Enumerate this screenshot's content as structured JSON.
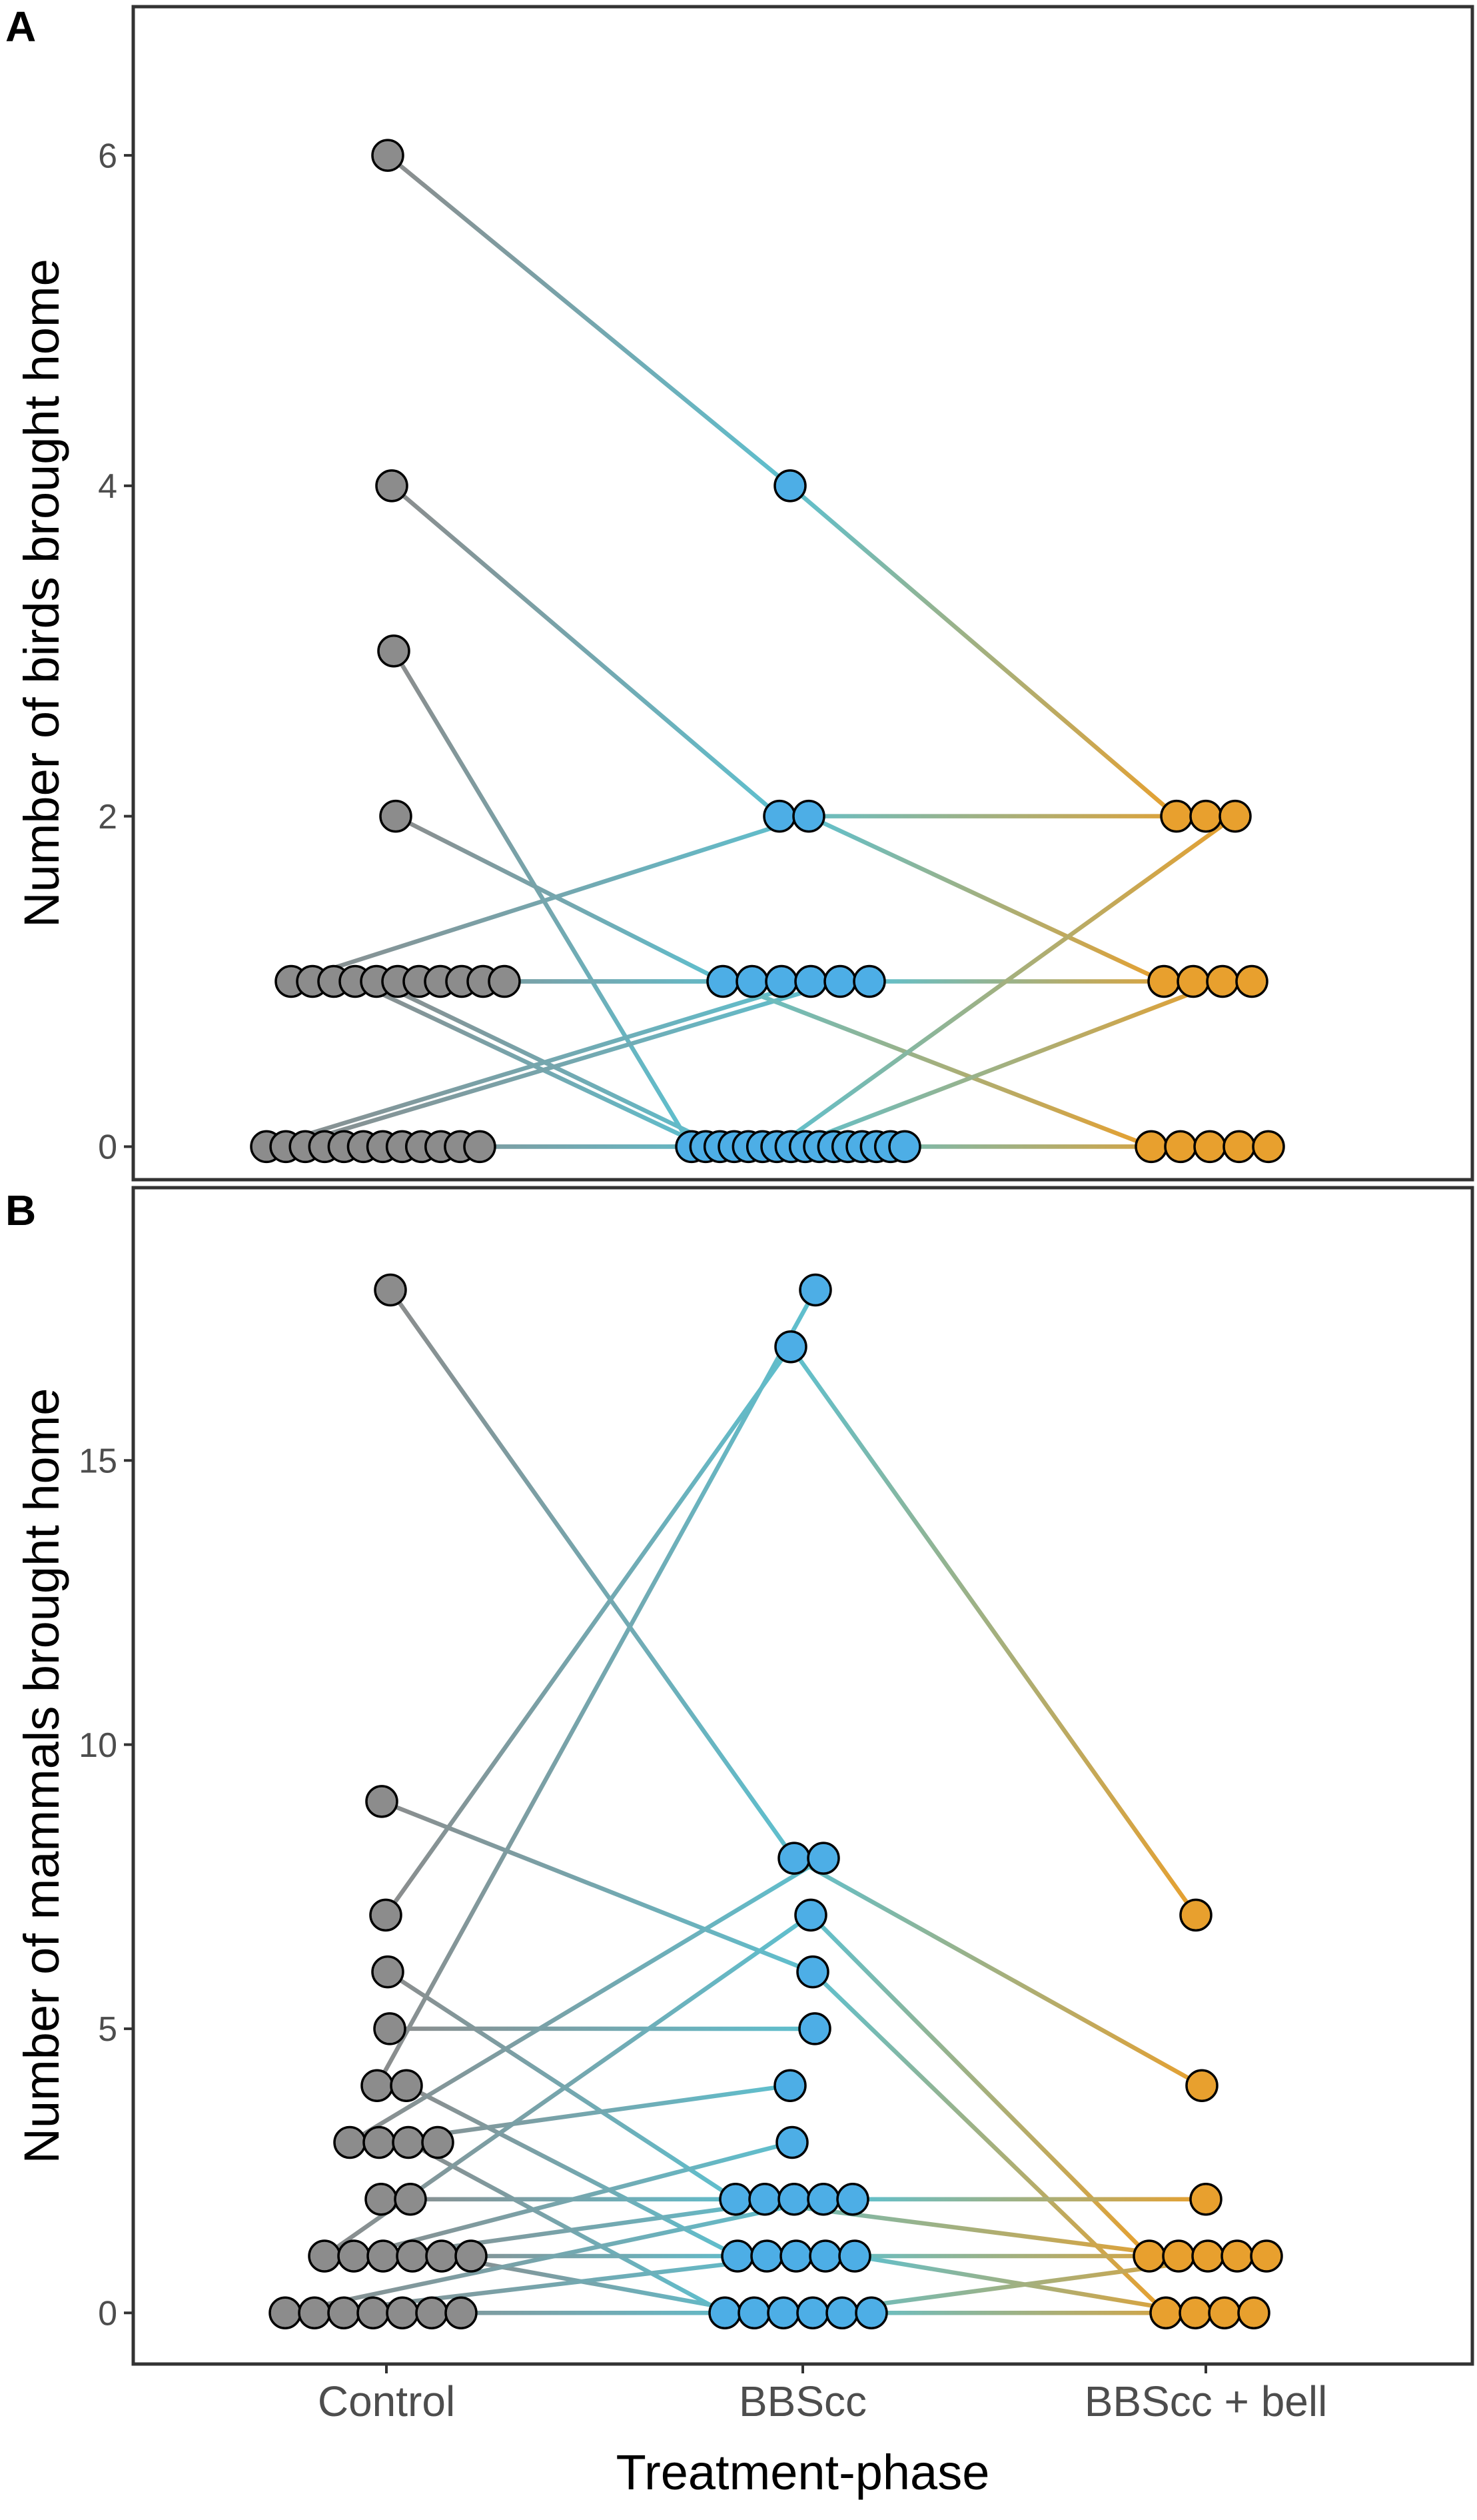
{
  "chart_data": [
    {
      "panel": "A",
      "type": "scatter",
      "subtype": "paired-dot-plot",
      "ylabel": "Number of birds brought home",
      "xlabel": "Treatment-phase",
      "categories": [
        "Control",
        "BBScc",
        "BBScc + bell"
      ],
      "ylim": [
        -0.2,
        6.9
      ],
      "yticks": [
        0,
        2,
        4,
        6
      ],
      "series": [
        {
          "name": "Control",
          "color": "#8c8c8c",
          "values": [
            6,
            4,
            3,
            2,
            1,
            1,
            1,
            1,
            1,
            1,
            1,
            1,
            1,
            1,
            1,
            0,
            0,
            0,
            0,
            0,
            0,
            0,
            0,
            0,
            0,
            0,
            0
          ]
        },
        {
          "name": "BBScc",
          "color": "#4daee6",
          "values": [
            4,
            2,
            2,
            1,
            1,
            1,
            1,
            1,
            1,
            0,
            0,
            0,
            0,
            0,
            0,
            0,
            0,
            0,
            0,
            0,
            0,
            0,
            0,
            0,
            0
          ]
        },
        {
          "name": "BBScc + bell",
          "color": "#e8a02e",
          "values": [
            2,
            2,
            2,
            1,
            1,
            1,
            1,
            0,
            0,
            0,
            0,
            0
          ]
        }
      ],
      "links": [
        {
          "from": [
            "Control",
            6
          ],
          "to": [
            "BBScc",
            4
          ]
        },
        {
          "from": [
            "BBScc",
            4
          ],
          "to": [
            "BBScc + bell",
            2
          ]
        },
        {
          "from": [
            "Control",
            4
          ],
          "to": [
            "BBScc",
            2
          ]
        },
        {
          "from": [
            "Control",
            3
          ],
          "to": [
            "BBScc",
            0
          ]
        },
        {
          "from": [
            "Control",
            2
          ],
          "to": [
            "BBScc",
            1
          ]
        },
        {
          "from": [
            "Control",
            1
          ],
          "to": [
            "BBScc",
            2
          ]
        },
        {
          "from": [
            "Control",
            1
          ],
          "to": [
            "BBScc",
            1
          ]
        },
        {
          "from": [
            "Control",
            1
          ],
          "to": [
            "BBScc",
            1
          ]
        },
        {
          "from": [
            "Control",
            1
          ],
          "to": [
            "BBScc",
            0
          ]
        },
        {
          "from": [
            "Control",
            1
          ],
          "to": [
            "BBScc",
            0
          ]
        },
        {
          "from": [
            "Control",
            0
          ],
          "to": [
            "BBScc",
            1
          ]
        },
        {
          "from": [
            "Control",
            0
          ],
          "to": [
            "BBScc",
            1
          ]
        },
        {
          "from": [
            "Control",
            0
          ],
          "to": [
            "BBScc",
            0
          ]
        },
        {
          "from": [
            "Control",
            0
          ],
          "to": [
            "BBScc",
            0
          ]
        },
        {
          "from": [
            "Control",
            0
          ],
          "to": [
            "BBScc",
            0
          ]
        },
        {
          "from": [
            "BBScc",
            2
          ],
          "to": [
            "BBScc + bell",
            2
          ]
        },
        {
          "from": [
            "BBScc",
            2
          ],
          "to": [
            "BBScc + bell",
            1
          ]
        },
        {
          "from": [
            "BBScc",
            1
          ],
          "to": [
            "BBScc + bell",
            1
          ]
        },
        {
          "from": [
            "BBScc",
            1
          ],
          "to": [
            "BBScc + bell",
            0
          ]
        },
        {
          "from": [
            "BBScc",
            0
          ],
          "to": [
            "BBScc + bell",
            2
          ]
        },
        {
          "from": [
            "BBScc",
            0
          ],
          "to": [
            "BBScc + bell",
            1
          ]
        },
        {
          "from": [
            "BBScc",
            0
          ],
          "to": [
            "BBScc + bell",
            0
          ]
        },
        {
          "from": [
            "BBScc",
            0
          ],
          "to": [
            "BBScc + bell",
            0
          ]
        }
      ]
    },
    {
      "panel": "B",
      "type": "scatter",
      "subtype": "paired-dot-plot",
      "ylabel": "Number of mammals brought home",
      "xlabel": "Treatment-phase",
      "categories": [
        "Control",
        "BBScc",
        "BBScc + bell"
      ],
      "ylim": [
        -0.9,
        19.8
      ],
      "yticks": [
        0,
        5,
        10,
        15
      ],
      "series": [
        {
          "name": "Control",
          "color": "#8c8c8c",
          "values": [
            18,
            9,
            7,
            6,
            5,
            4,
            4,
            3,
            3,
            3,
            3,
            2,
            2,
            1,
            1,
            1,
            1,
            1,
            1,
            0,
            0,
            0,
            0,
            0,
            0,
            0
          ]
        },
        {
          "name": "BBScc",
          "color": "#4daee6",
          "values": [
            18,
            17,
            8,
            8,
            7,
            6,
            5,
            4,
            3,
            2,
            2,
            2,
            2,
            2,
            1,
            1,
            1,
            1,
            1,
            0,
            0,
            0,
            0,
            0,
            0
          ]
        },
        {
          "name": "BBScc + bell",
          "color": "#e8a02e",
          "values": [
            7,
            4,
            2,
            1,
            1,
            1,
            1,
            1,
            0,
            0,
            0,
            0
          ]
        }
      ],
      "links": [
        {
          "from": [
            "Control",
            18
          ],
          "to": [
            "BBScc",
            8
          ]
        },
        {
          "from": [
            "Control",
            9
          ],
          "to": [
            "BBScc",
            6
          ]
        },
        {
          "from": [
            "Control",
            7
          ],
          "to": [
            "BBScc",
            17
          ]
        },
        {
          "from": [
            "Control",
            6
          ],
          "to": [
            "BBScc",
            2
          ]
        },
        {
          "from": [
            "Control",
            5
          ],
          "to": [
            "BBScc",
            5
          ]
        },
        {
          "from": [
            "Control",
            4
          ],
          "to": [
            "BBScc",
            18
          ]
        },
        {
          "from": [
            "Control",
            4
          ],
          "to": [
            "BBScc",
            1
          ]
        },
        {
          "from": [
            "Control",
            3
          ],
          "to": [
            "BBScc",
            8
          ]
        },
        {
          "from": [
            "Control",
            3
          ],
          "to": [
            "BBScc",
            4
          ]
        },
        {
          "from": [
            "Control",
            3
          ],
          "to": [
            "BBScc",
            0
          ]
        },
        {
          "from": [
            "Control",
            2
          ],
          "to": [
            "BBScc",
            2
          ]
        },
        {
          "from": [
            "Control",
            1
          ],
          "to": [
            "BBScc",
            7
          ]
        },
        {
          "from": [
            "Control",
            1
          ],
          "to": [
            "BBScc",
            3
          ]
        },
        {
          "from": [
            "Control",
            1
          ],
          "to": [
            "BBScc",
            2
          ]
        },
        {
          "from": [
            "Control",
            1
          ],
          "to": [
            "BBScc",
            1
          ]
        },
        {
          "from": [
            "Control",
            1
          ],
          "to": [
            "BBScc",
            0
          ]
        },
        {
          "from": [
            "Control",
            0
          ],
          "to": [
            "BBScc",
            2
          ]
        },
        {
          "from": [
            "Control",
            0
          ],
          "to": [
            "BBScc",
            1
          ]
        },
        {
          "from": [
            "Control",
            0
          ],
          "to": [
            "BBScc",
            0
          ]
        },
        {
          "from": [
            "BBScc",
            17
          ],
          "to": [
            "BBScc + bell",
            7
          ]
        },
        {
          "from": [
            "BBScc",
            8
          ],
          "to": [
            "BBScc + bell",
            4
          ]
        },
        {
          "from": [
            "BBScc",
            7
          ],
          "to": [
            "BBScc + bell",
            1
          ]
        },
        {
          "from": [
            "BBScc",
            6
          ],
          "to": [
            "BBScc + bell",
            0
          ]
        },
        {
          "from": [
            "BBScc",
            2
          ],
          "to": [
            "BBScc + bell",
            2
          ]
        },
        {
          "from": [
            "BBScc",
            2
          ],
          "to": [
            "BBScc + bell",
            1
          ]
        },
        {
          "from": [
            "BBScc",
            1
          ],
          "to": [
            "BBScc + bell",
            1
          ]
        },
        {
          "from": [
            "BBScc",
            1
          ],
          "to": [
            "BBScc + bell",
            0
          ]
        },
        {
          "from": [
            "BBScc",
            0
          ],
          "to": [
            "BBScc + bell",
            1
          ]
        },
        {
          "from": [
            "BBScc",
            0
          ],
          "to": [
            "BBScc + bell",
            0
          ]
        }
      ]
    }
  ]
}
